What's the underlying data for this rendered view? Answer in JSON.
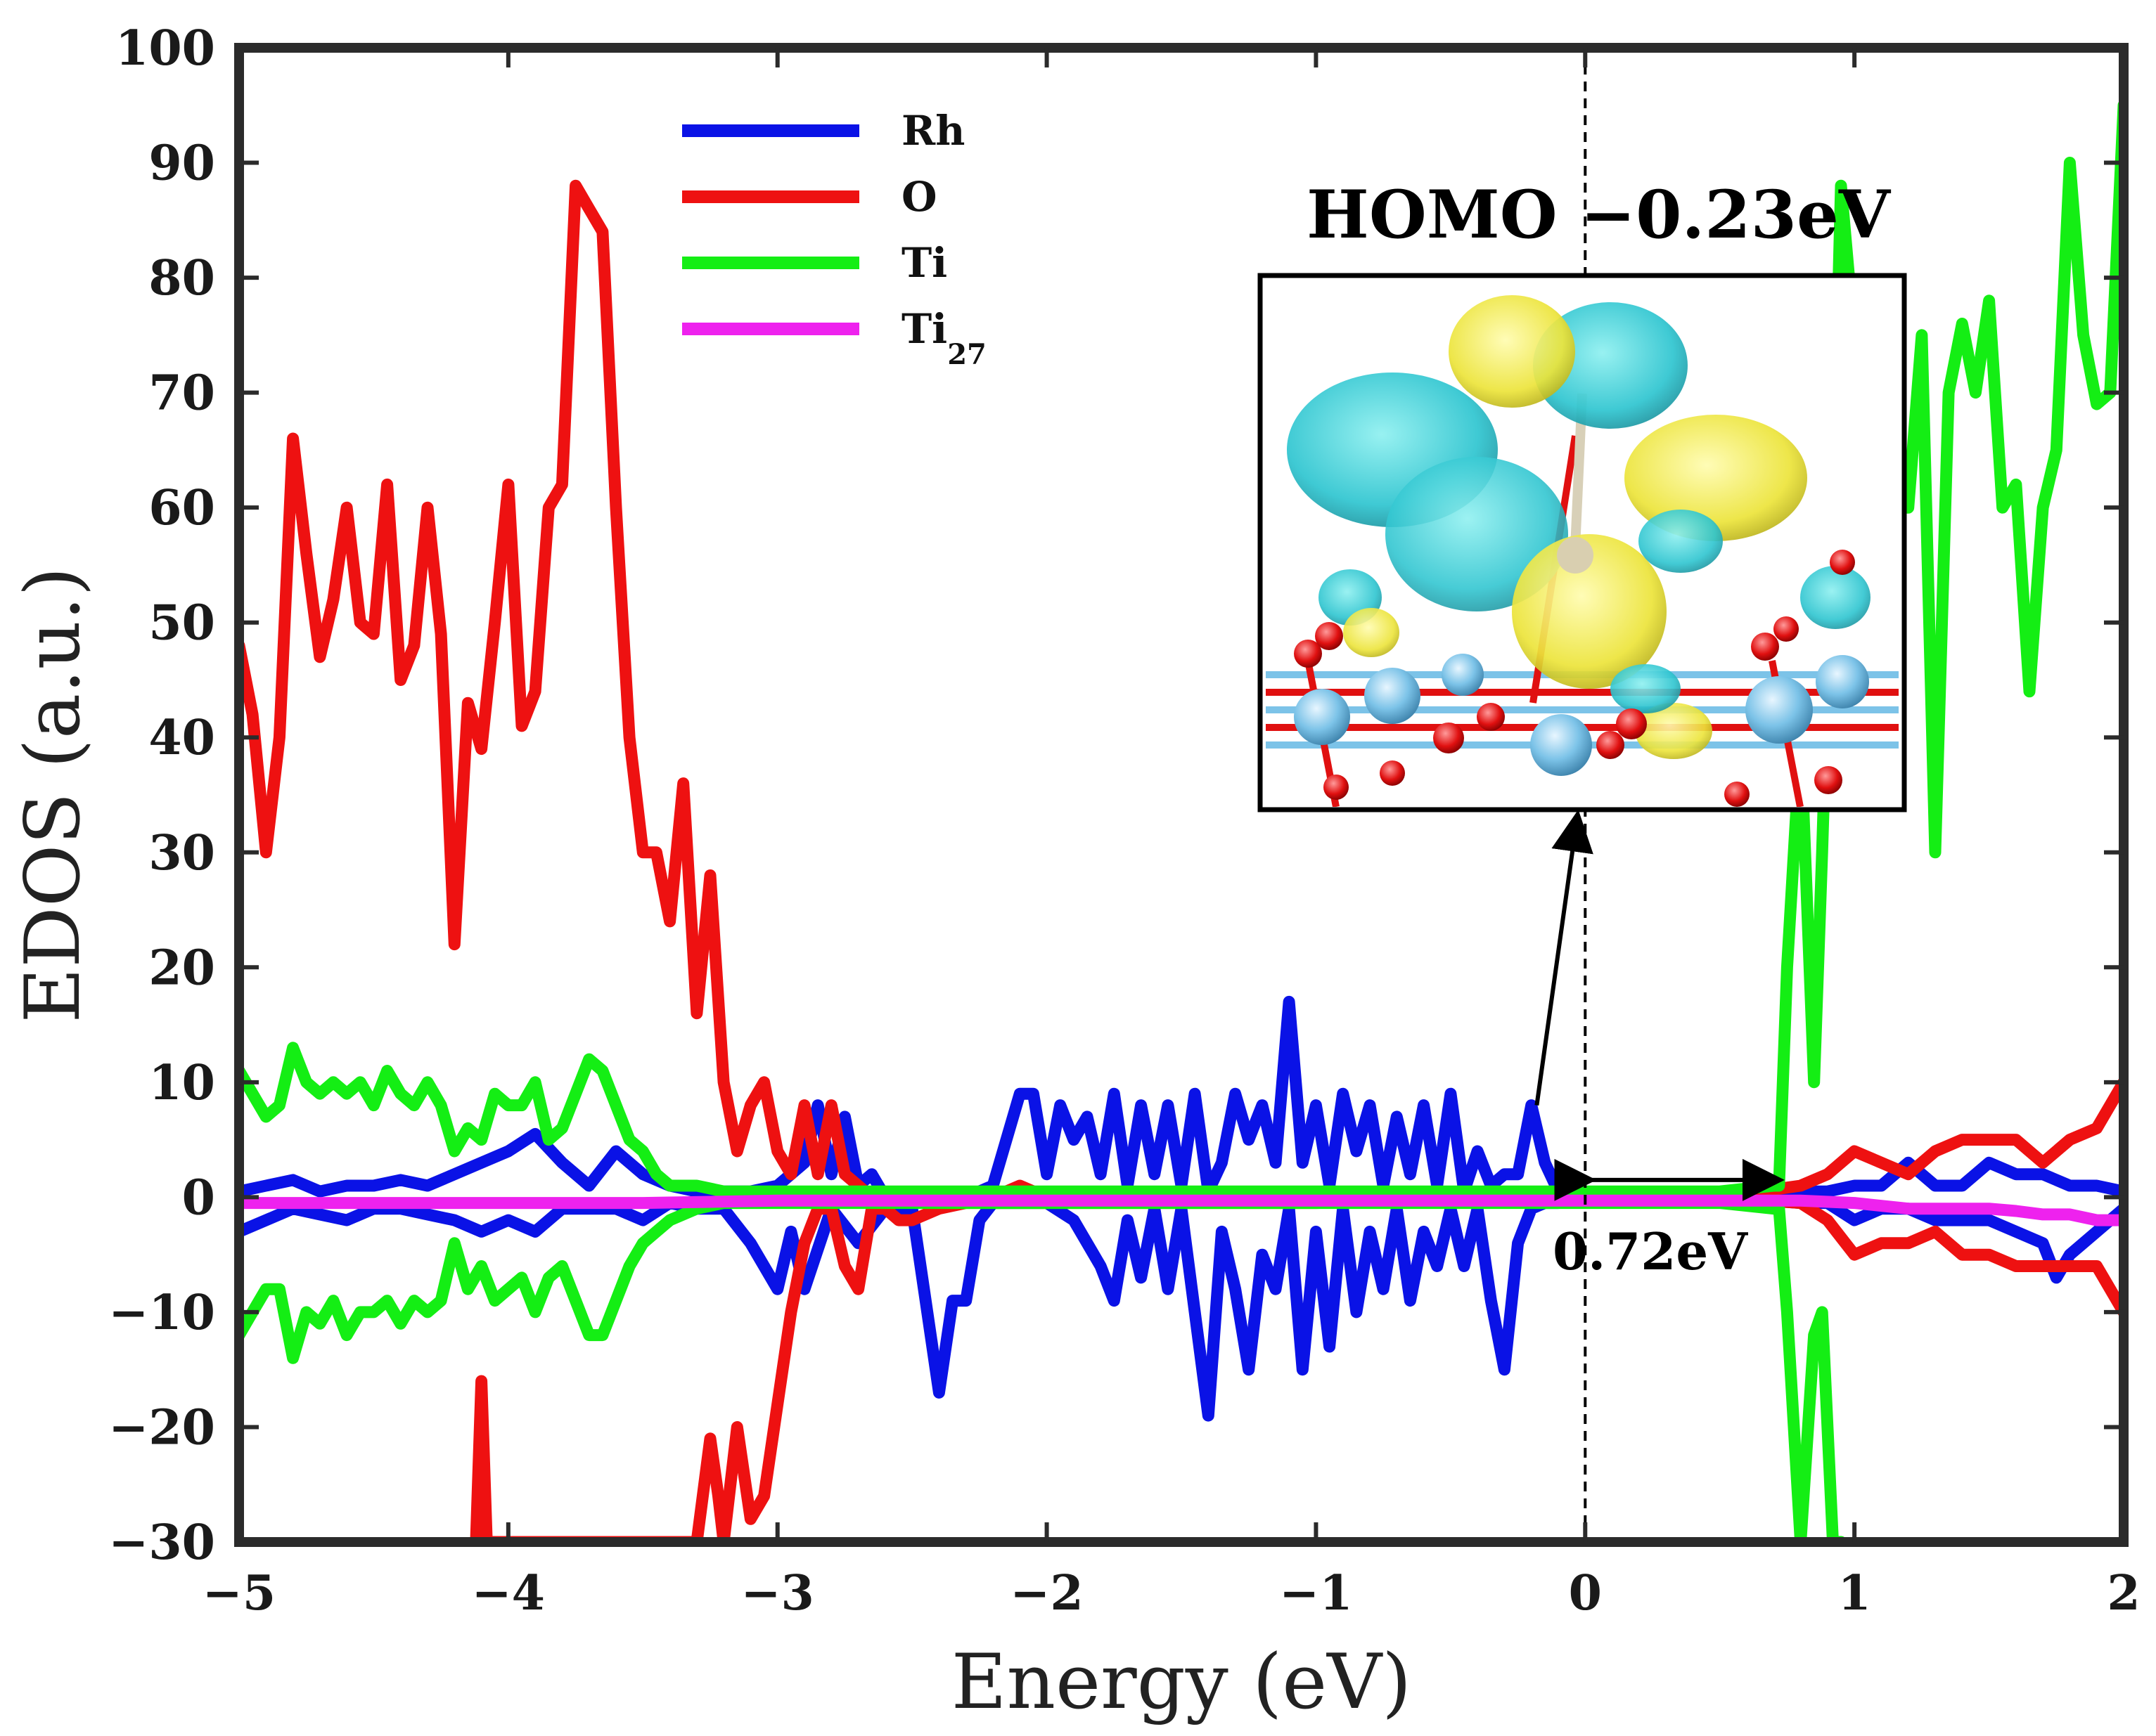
{
  "chart_data": {
    "type": "line",
    "title": "",
    "xlabel": "Energy  (eV)",
    "ylabel": "EDOS  (a.u.)",
    "xlim": [
      -5,
      2
    ],
    "ylim": [
      -30,
      100
    ],
    "xticks": [
      -5,
      -4,
      -3,
      -2,
      -1,
      0,
      1,
      2
    ],
    "xtick_labels": [
      "−5",
      "−4",
      "−3",
      "−2",
      "−1",
      "0",
      "1",
      "2"
    ],
    "yticks": [
      100,
      90,
      80,
      70,
      60,
      50,
      40,
      30,
      20,
      10,
      0,
      -10,
      -20,
      -30
    ],
    "ytick_labels": [
      "100",
      "90",
      "80",
      "70",
      "60",
      "50",
      "40",
      "30",
      "20",
      "10",
      "0",
      "−10",
      "−20",
      "−30"
    ],
    "legend": {
      "position": "top-left",
      "entries": [
        {
          "label": "Rh",
          "sub": "",
          "color": "#0a12e6"
        },
        {
          "label": "O",
          "sub": "",
          "color": "#ee1111"
        },
        {
          "label": "Ti",
          "sub": "",
          "color": "#14ee14"
        },
        {
          "label": "Ti",
          "sub": "27",
          "color": "#ee22ee"
        }
      ]
    },
    "fermi_level": 0,
    "series": [
      {
        "name": "Rh",
        "color": "#0a12e6",
        "x": [
          -5,
          -4.9,
          -4.8,
          -4.7,
          -4.6,
          -4.5,
          -4.4,
          -4.3,
          -4.2,
          -4.1,
          -4.0,
          -3.9,
          -3.8,
          -3.7,
          -3.6,
          -3.5,
          -3.4,
          -3.3,
          -3.2,
          -3.1,
          -3.0,
          -2.9,
          -2.85,
          -2.8,
          -2.75,
          -2.7,
          -2.65,
          -2.6,
          -2.5,
          -2.3,
          -2.2,
          -2.1,
          -2.05,
          -2.0,
          -1.95,
          -1.9,
          -1.85,
          -1.8,
          -1.75,
          -1.7,
          -1.65,
          -1.6,
          -1.55,
          -1.5,
          -1.45,
          -1.4,
          -1.35,
          -1.3,
          -1.25,
          -1.2,
          -1.15,
          -1.1,
          -1.05,
          -1.0,
          -0.95,
          -0.9,
          -0.85,
          -0.8,
          -0.75,
          -0.7,
          -0.65,
          -0.6,
          -0.55,
          -0.5,
          -0.45,
          -0.4,
          -0.35,
          -0.3,
          -0.25,
          -0.2,
          -0.15,
          -0.1,
          0,
          0.5,
          0.8,
          0.9,
          1.0,
          1.1,
          1.2,
          1.3,
          1.4,
          1.5,
          1.6,
          1.7,
          1.8,
          1.9,
          2.0
        ],
        "y": [
          0.5,
          1,
          1.5,
          0.5,
          1,
          1,
          1.5,
          1,
          2,
          3,
          4,
          5.5,
          3,
          1,
          4,
          2,
          1,
          0.5,
          0.5,
          0.5,
          1,
          3,
          8,
          2,
          7,
          1,
          2,
          0,
          0,
          0,
          1,
          9,
          9,
          2,
          8,
          5,
          7,
          2,
          9,
          1,
          8,
          2,
          8,
          1,
          9,
          0.5,
          3,
          9,
          5,
          8,
          3,
          17,
          3,
          8,
          1,
          9,
          4,
          8,
          1,
          7,
          2,
          8,
          1,
          9,
          0.5,
          4,
          1,
          2,
          2,
          8,
          3,
          0.5,
          0,
          0,
          0.5,
          0.5,
          1,
          1,
          3,
          1,
          1,
          3,
          2,
          2,
          1,
          1,
          0.5
        ]
      },
      {
        "name": "Rh-down",
        "color": "#0a12e6",
        "x": [
          -5,
          -4.9,
          -4.8,
          -4.7,
          -4.6,
          -4.5,
          -4.4,
          -4.3,
          -4.2,
          -4.1,
          -4.0,
          -3.9,
          -3.8,
          -3.7,
          -3.6,
          -3.5,
          -3.4,
          -3.3,
          -3.2,
          -3.1,
          -3.0,
          -2.95,
          -2.9,
          -2.8,
          -2.7,
          -2.6,
          -2.5,
          -2.45,
          -2.4,
          -2.35,
          -2.3,
          -2.25,
          -2.2,
          -2.1,
          -2.0,
          -1.9,
          -1.8,
          -1.75,
          -1.7,
          -1.65,
          -1.6,
          -1.55,
          -1.5,
          -1.45,
          -1.4,
          -1.35,
          -1.3,
          -1.25,
          -1.2,
          -1.15,
          -1.1,
          -1.05,
          -1.0,
          -0.95,
          -0.9,
          -0.85,
          -0.8,
          -0.75,
          -0.7,
          -0.65,
          -0.6,
          -0.55,
          -0.5,
          -0.45,
          -0.4,
          -0.35,
          -0.3,
          -0.25,
          -0.2,
          -0.15,
          -0.1,
          0,
          0.5,
          0.8,
          0.9,
          1.0,
          1.1,
          1.2,
          1.3,
          1.4,
          1.5,
          1.6,
          1.7,
          1.75,
          1.8,
          1.9,
          2.0
        ],
        "y": [
          -3,
          -2,
          -1,
          -1.5,
          -2,
          -1,
          -1,
          -1.5,
          -2,
          -3,
          -2,
          -3,
          -1,
          -1,
          -1,
          -2,
          -0.5,
          -1,
          -1,
          -4,
          -8,
          -3,
          -8,
          -1,
          -4,
          -1,
          -1,
          -9,
          -17,
          -9,
          -9,
          -2,
          -0.5,
          -0.5,
          -0.5,
          -2,
          -6,
          -9,
          -2,
          -7,
          -1,
          -8,
          -1,
          -10,
          -19,
          -3,
          -8,
          -15,
          -5,
          -8,
          -1,
          -15,
          -3,
          -13,
          -1,
          -10,
          -3,
          -8,
          -1,
          -9,
          -3,
          -6,
          -1,
          -6,
          -1,
          -9,
          -15,
          -4,
          -1,
          -0.5,
          -0.5,
          0,
          0,
          -0.5,
          -0.5,
          -2,
          -1,
          -1,
          -2,
          -2,
          -2,
          -3,
          -4,
          -7,
          -5,
          -3,
          -1
        ]
      },
      {
        "name": "O",
        "color": "#ee1111",
        "x": [
          -5,
          -4.95,
          -4.9,
          -4.85,
          -4.8,
          -4.75,
          -4.7,
          -4.65,
          -4.6,
          -4.55,
          -4.5,
          -4.45,
          -4.4,
          -4.35,
          -4.3,
          -4.25,
          -4.2,
          -4.15,
          -4.1,
          -4.05,
          -4.0,
          -3.95,
          -3.9,
          -3.85,
          -3.8,
          -3.75,
          -3.7,
          -3.65,
          -3.6,
          -3.55,
          -3.5,
          -3.45,
          -3.4,
          -3.35,
          -3.3,
          -3.25,
          -3.2,
          -3.15,
          -3.1,
          -3.05,
          -3.0,
          -2.95,
          -2.9,
          -2.85,
          -2.8,
          -2.75,
          -2.7,
          -2.65,
          -2.6,
          -2.55,
          -2.5,
          -2.4,
          -2.3,
          -2.2,
          -2.1,
          -2.0,
          -1.0,
          0,
          0.5,
          0.8,
          0.9,
          1.0,
          1.1,
          1.2,
          1.3,
          1.4,
          1.5,
          1.6,
          1.7,
          1.8,
          1.9,
          2.0
        ],
        "y": [
          48,
          42,
          30,
          40,
          66,
          56,
          47,
          52,
          60,
          50,
          49,
          62,
          45,
          48,
          60,
          49,
          22,
          43,
          39,
          50,
          62,
          41,
          44,
          60,
          62,
          88,
          86,
          84,
          60,
          40,
          30,
          30,
          24,
          36,
          16,
          28,
          10,
          4,
          8,
          10,
          4,
          2,
          8,
          2,
          8,
          2,
          1,
          0,
          0,
          0,
          0,
          0,
          0,
          0,
          1,
          0,
          0,
          0,
          0,
          1,
          2,
          4,
          3,
          2,
          4,
          5,
          5,
          5,
          3,
          5,
          6,
          10
        ]
      },
      {
        "name": "O-down",
        "color": "#ee1111",
        "x": [
          -4.12,
          -4.1,
          -4.08,
          -3.3,
          -3.25,
          -3.22,
          -3.2,
          -3.15,
          -3.1,
          -3.05,
          -3.0,
          -2.95,
          -2.9,
          -2.85,
          -2.8,
          -2.75,
          -2.7,
          -2.65,
          -2.6,
          -2.55,
          -2.5,
          -2.4,
          -2.3,
          -2.2,
          -2.1,
          -2.0,
          -1.0,
          0,
          0.5,
          0.8,
          0.9,
          1.0,
          1.1,
          1.2,
          1.3,
          1.4,
          1.5,
          1.6,
          1.7,
          1.8,
          1.9,
          2.0
        ],
        "y": [
          -30,
          -16,
          -30,
          -30,
          -21,
          -26,
          -30,
          -20,
          -28,
          -26,
          -18,
          -10,
          -4,
          -1,
          -1,
          -6,
          -8,
          -1,
          -1,
          -2,
          -2,
          -1,
          -0.5,
          -0.5,
          -0.5,
          -0.5,
          -0.5,
          0,
          0,
          -0.5,
          -2,
          -5,
          -4,
          -4,
          -3,
          -5,
          -5,
          -6,
          -6,
          -6,
          -6,
          -10
        ]
      },
      {
        "name": "Ti",
        "color": "#14ee14",
        "x": [
          -5,
          -4.95,
          -4.9,
          -4.85,
          -4.8,
          -4.75,
          -4.7,
          -4.65,
          -4.6,
          -4.55,
          -4.5,
          -4.45,
          -4.4,
          -4.35,
          -4.3,
          -4.25,
          -4.2,
          -4.15,
          -4.1,
          -4.05,
          -4.0,
          -3.95,
          -3.9,
          -3.85,
          -3.8,
          -3.75,
          -3.7,
          -3.65,
          -3.6,
          -3.55,
          -3.5,
          -3.45,
          -3.4,
          -3.3,
          -3.2,
          -3.1,
          -3.0,
          -2.5,
          -2.0,
          -1.0,
          0,
          0.5,
          0.7,
          0.72,
          0.75,
          0.8,
          0.85,
          0.88,
          0.92,
          0.95,
          0.98,
          1.0,
          1.02,
          1.05,
          1.1,
          1.15,
          1.2,
          1.25,
          1.3,
          1.35,
          1.4,
          1.45,
          1.5,
          1.55,
          1.6,
          1.65,
          1.7,
          1.75,
          1.8,
          1.85,
          1.9,
          1.95,
          2.0
        ],
        "y": [
          11,
          9,
          7,
          8,
          13,
          10,
          9,
          10,
          9,
          10,
          8,
          11,
          9,
          8,
          10,
          8,
          4,
          6,
          5,
          9,
          8,
          8,
          10,
          5,
          6,
          9,
          12,
          11,
          8,
          5,
          4,
          2,
          1,
          1,
          0.5,
          0.5,
          0.5,
          0.5,
          0.5,
          0.5,
          0.5,
          0.5,
          1,
          1,
          20,
          40,
          10,
          30,
          60,
          88,
          80,
          55,
          55,
          58,
          57,
          60,
          60,
          75,
          30,
          70,
          76,
          70,
          78,
          60,
          62,
          44,
          60,
          65,
          90,
          75,
          69,
          70,
          95
        ]
      },
      {
        "name": "Ti-down",
        "color": "#14ee14",
        "x": [
          -5,
          -4.95,
          -4.9,
          -4.85,
          -4.8,
          -4.75,
          -4.7,
          -4.65,
          -4.6,
          -4.55,
          -4.5,
          -4.45,
          -4.4,
          -4.35,
          -4.3,
          -4.25,
          -4.2,
          -4.15,
          -4.1,
          -4.05,
          -4.0,
          -3.95,
          -3.9,
          -3.85,
          -3.8,
          -3.75,
          -3.7,
          -3.65,
          -3.6,
          -3.55,
          -3.5,
          -3.45,
          -3.4,
          -3.3,
          -3.2,
          -3.1,
          -3.0,
          -2.5,
          -2.0,
          -1.0,
          0,
          0.5,
          0.7,
          0.72,
          0.75,
          0.8,
          0.85,
          0.88,
          0.92,
          0.95
        ],
        "y": [
          -12,
          -10,
          -8,
          -8,
          -14,
          -10,
          -11,
          -9,
          -12,
          -10,
          -10,
          -9,
          -11,
          -9,
          -10,
          -9,
          -4,
          -8,
          -6,
          -9,
          -8,
          -7,
          -10,
          -7,
          -6,
          -9,
          -12,
          -12,
          -9,
          -6,
          -4,
          -3,
          -2,
          -1,
          -0.5,
          -0.5,
          -0.5,
          -0.5,
          -0.5,
          -0.5,
          -0.5,
          -0.5,
          -1,
          -1,
          -10,
          -30,
          -12,
          -10,
          -30,
          -30
        ]
      },
      {
        "name": "Ti27",
        "color": "#ee22ee",
        "x": [
          -5,
          -4.5,
          -4.0,
          -3.5,
          -3.0,
          -2.5,
          -2.0,
          -1.5,
          -1.0,
          -0.5,
          0,
          0.5,
          0.8,
          1.0,
          1.2,
          1.4,
          1.5,
          1.6,
          1.7,
          1.8,
          1.9,
          2.0
        ],
        "y": [
          -0.5,
          -0.5,
          -0.5,
          -0.5,
          -0.3,
          -0.3,
          -0.3,
          -0.3,
          -0.3,
          -0.3,
          -0.3,
          -0.3,
          -0.3,
          -0.5,
          -1,
          -1,
          -1,
          -1.2,
          -1.5,
          -1.5,
          -2,
          -2
        ]
      }
    ],
    "annotations": {
      "homo_label": "HOMO −0.23eV",
      "gap_label": "0.72eV",
      "gap_x": [
        0,
        0.72
      ],
      "gap_y": 1.5,
      "homo_arrow_from": [
        -0.18,
        8
      ],
      "homo_arrow_to": [
        -0.03,
        33
      ],
      "inset_description_hidden": true
    }
  }
}
